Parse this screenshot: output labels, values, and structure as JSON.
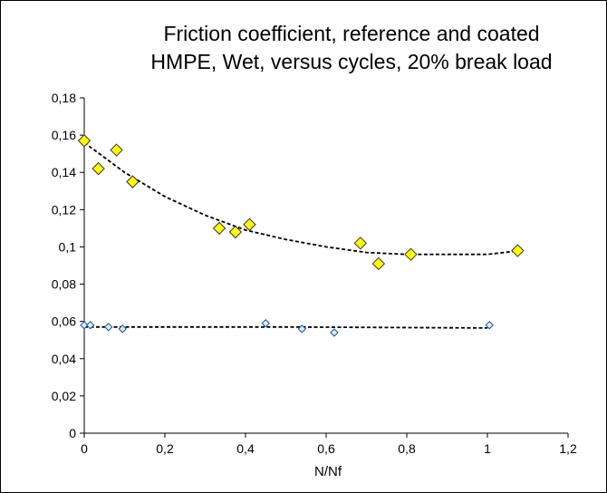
{
  "chart_data": {
    "type": "scatter",
    "title_lines": [
      "Friction coefficient, reference and coated",
      "HMPE, Wet, versus cycles, 20% break load"
    ],
    "xlabel": "N/Nf",
    "ylabel": "",
    "xlim": [
      0,
      1.2
    ],
    "ylim": [
      0,
      0.18
    ],
    "x_ticks": [
      "0",
      "0,2",
      "0,4",
      "0,6",
      "0,8",
      "1",
      "1,2"
    ],
    "x_tick_values": [
      0,
      0.2,
      0.4,
      0.6,
      0.8,
      1.0,
      1.2
    ],
    "y_ticks": [
      "0",
      "0,02",
      "0,04",
      "0,06",
      "0,08",
      "0,1",
      "0,12",
      "0,14",
      "0,16",
      "0,18"
    ],
    "y_tick_values": [
      0,
      0.02,
      0.04,
      0.06,
      0.08,
      0.1,
      0.12,
      0.14,
      0.16,
      0.18
    ],
    "grid": false,
    "legend": "none",
    "series": [
      {
        "marker": "diamond",
        "color": "#FFFF00",
        "points": [
          [
            0.0,
            0.157
          ],
          [
            0.035,
            0.142
          ],
          [
            0.08,
            0.152
          ],
          [
            0.12,
            0.135
          ],
          [
            0.335,
            0.11
          ],
          [
            0.375,
            0.108
          ],
          [
            0.41,
            0.112
          ],
          [
            0.685,
            0.102
          ],
          [
            0.73,
            0.091
          ],
          [
            0.81,
            0.096
          ],
          [
            1.075,
            0.098
          ]
        ],
        "trendline": [
          [
            0.0,
            0.156
          ],
          [
            0.1,
            0.14
          ],
          [
            0.2,
            0.127
          ],
          [
            0.3,
            0.117
          ],
          [
            0.4,
            0.109
          ],
          [
            0.5,
            0.104
          ],
          [
            0.6,
            0.1
          ],
          [
            0.7,
            0.097
          ],
          [
            0.8,
            0.096
          ],
          [
            0.9,
            0.096
          ],
          [
            1.0,
            0.096
          ],
          [
            1.08,
            0.098
          ]
        ]
      },
      {
        "marker": "diamond",
        "color": "#DDEEFF",
        "points": [
          [
            0.0,
            0.058
          ],
          [
            0.015,
            0.058
          ],
          [
            0.06,
            0.057
          ],
          [
            0.095,
            0.056
          ],
          [
            0.45,
            0.059
          ],
          [
            0.54,
            0.056
          ],
          [
            0.62,
            0.054
          ],
          [
            1.005,
            0.058
          ]
        ],
        "trendline": [
          [
            0.0,
            0.057
          ],
          [
            0.5,
            0.057
          ],
          [
            1.0,
            0.0565
          ]
        ]
      }
    ]
  }
}
